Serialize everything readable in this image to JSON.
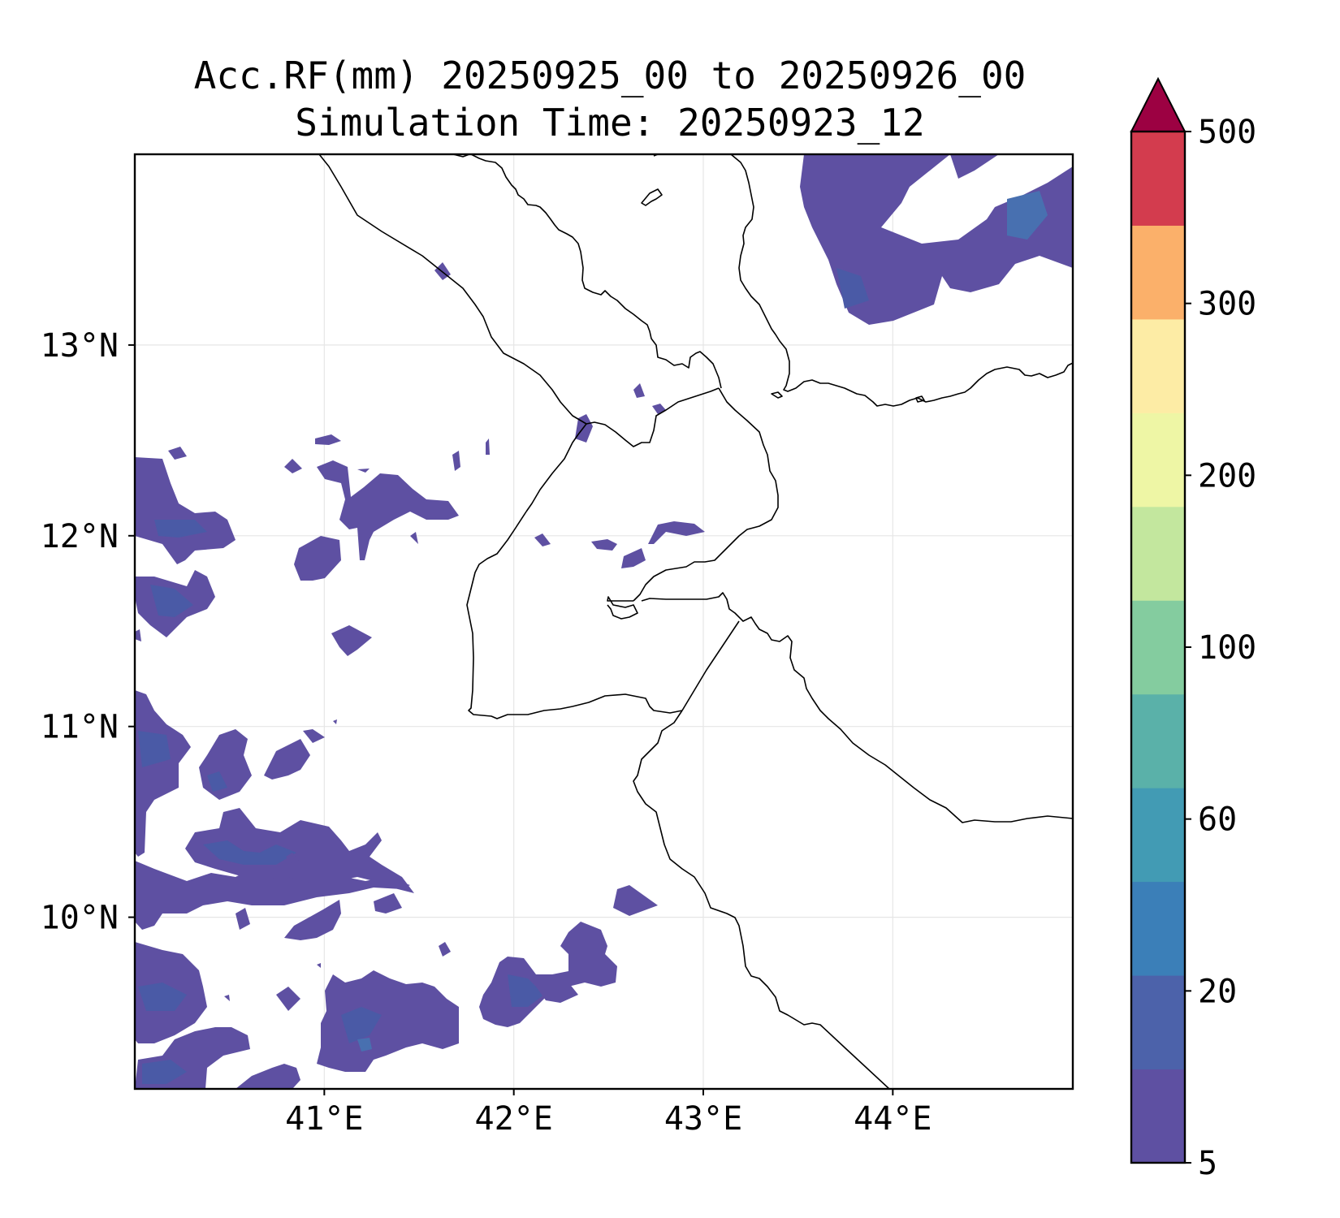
{
  "title": {
    "line1": "Acc.RF(mm) 20250925_00 to 20250926_00",
    "line2": "Simulation Time: 20250923_12"
  },
  "map": {
    "lon_range": [
      40.0,
      44.95
    ],
    "lat_range": [
      9.1,
      14.0
    ],
    "lon_ticks": [
      {
        "value": 41,
        "label": "41°E"
      },
      {
        "value": 42,
        "label": "42°E"
      },
      {
        "value": 43,
        "label": "43°E"
      },
      {
        "value": 44,
        "label": "44°E"
      }
    ],
    "lat_ticks": [
      {
        "value": 13,
        "label": "13°N"
      },
      {
        "value": 12,
        "label": "12°N"
      },
      {
        "value": 11,
        "label": "11°N"
      },
      {
        "value": 10,
        "label": "10°N"
      }
    ],
    "gridlines": true
  },
  "colorbar": {
    "extend": "max",
    "labels": [
      "500",
      "300",
      "200",
      "100",
      "60",
      "20",
      "5"
    ],
    "colors": [
      "#5e50a2",
      "#4c62aa",
      "#3b7fb8",
      "#429bb4",
      "#5ab1a9",
      "#84cc9f",
      "#c3e79e",
      "#eef6a5",
      "#fdeca5",
      "#fbb06a",
      "#d33c4e",
      "#9c0142"
    ]
  }
}
